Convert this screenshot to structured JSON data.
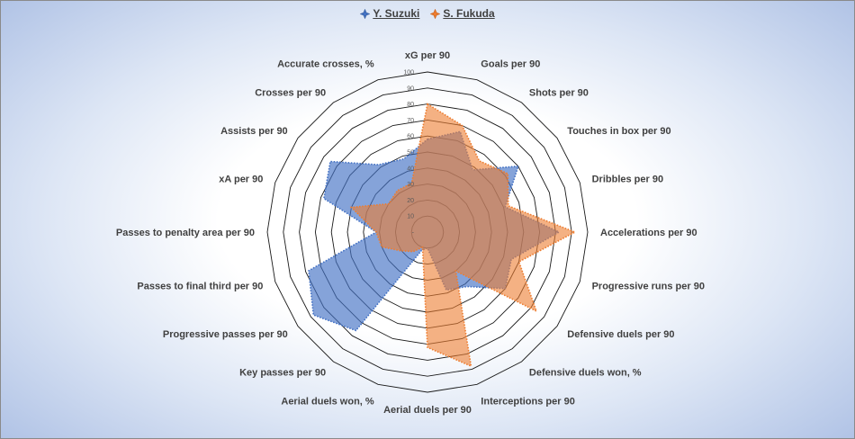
{
  "chart_data": {
    "type": "radar",
    "categories": [
      "xG per 90",
      "Goals per 90",
      "Shots per 90",
      "Touches in box per 90",
      "Dribbles per 90",
      "Accelerations per 90",
      "Progressive runs per 90",
      "Defensive duels per 90",
      "Defensive duels won, %",
      "Interceptions per 90",
      "Aerial duels per 90",
      "Aerial duels won, %",
      "Key passes per 90",
      "Progressive passes per 90",
      "Passes to final third per 90",
      "Passes to penalty area per 90",
      "xA per 90",
      "Assists per 90",
      "Crosses per 90",
      "Accurate crosses, %"
    ],
    "tick_labels": [
      "-",
      "10",
      "20",
      "30",
      "40",
      "50",
      "60",
      "70",
      "80",
      "90",
      "100"
    ],
    "rlim": [
      0,
      100
    ],
    "series": [
      {
        "name": "Y. Suzuki",
        "color": "#4472c4",
        "fill": "rgba(68,114,196,0.65)",
        "values": [
          58,
          66,
          48,
          70,
          51,
          82,
          55,
          60,
          42,
          38,
          10,
          12,
          76,
          88,
          78,
          32,
          68,
          75,
          52,
          48
        ]
      },
      {
        "name": "S. Fukuda",
        "color": "#ed7d31",
        "fill": "rgba(237,125,49,0.6)",
        "values": [
          80,
          70,
          55,
          62,
          53,
          92,
          60,
          84,
          30,
          88,
          72,
          10,
          15,
          20,
          30,
          32,
          50,
          30,
          32,
          32
        ]
      }
    ]
  }
}
